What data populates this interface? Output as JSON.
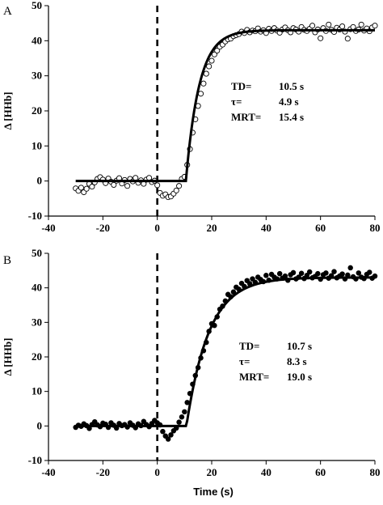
{
  "panels": [
    {
      "letter": "A",
      "marker": "open",
      "annotations": [
        {
          "label": "TD=",
          "value": "10.5 s"
        },
        {
          "label": "τ=",
          "value": "4.9  s"
        },
        {
          "label": "MRT=",
          "value": "15.4  s"
        }
      ]
    },
    {
      "letter": "B",
      "marker": "filled",
      "annotations": [
        {
          "label": "TD=",
          "value": "10.7 s"
        },
        {
          "label": "τ=",
          "value": "8.3  s"
        },
        {
          "label": "MRT=",
          "value": "19.0  s"
        }
      ]
    }
  ],
  "chart_data": [
    {
      "type": "scatter",
      "title": "",
      "xlabel": "",
      "ylabel": "Δ [HHb]",
      "xlim": [
        -40,
        80
      ],
      "ylim": [
        -10,
        50
      ],
      "xticks": [
        -40,
        -20,
        0,
        20,
        40,
        60,
        80
      ],
      "yticks": [
        -10,
        0,
        10,
        20,
        30,
        40,
        50
      ],
      "grid": false,
      "vertical_line_x": 0,
      "series": [
        {
          "marker": "open-circle",
          "x": [
            -30,
            -29,
            -28,
            -27,
            -26,
            -25,
            -24,
            -23,
            -22,
            -21,
            -20,
            -19,
            -18,
            -17,
            -16,
            -15,
            -14,
            -13,
            -12,
            -11,
            -10,
            -9,
            -8,
            -7,
            -6,
            -5,
            -4,
            -3,
            -2,
            -1,
            0,
            1,
            2,
            3,
            4,
            5,
            6,
            7,
            8,
            9,
            10,
            11,
            12,
            13,
            14,
            15,
            16,
            17,
            18,
            19,
            20,
            21,
            22,
            23,
            24,
            25,
            26,
            27,
            28,
            29,
            30,
            31,
            32,
            33,
            34,
            35,
            36,
            37,
            38,
            39,
            40,
            41,
            42,
            43,
            44,
            45,
            46,
            47,
            48,
            49,
            50,
            51,
            52,
            53,
            54,
            55,
            56,
            57,
            58,
            59,
            60,
            61,
            62,
            63,
            64,
            65,
            66,
            67,
            68,
            69,
            70,
            71,
            72,
            73,
            74,
            75,
            76,
            77,
            78,
            79,
            80
          ],
          "y": [
            -2.1,
            -2.8,
            -1.9,
            -3.2,
            -2.2,
            -0.8,
            -1.6,
            -0.4,
            0.6,
            1.1,
            0.4,
            -0.6,
            0.7,
            -0.2,
            -1.1,
            0.1,
            0.8,
            -0.7,
            0.3,
            -1.4,
            0.6,
            -0.1,
            0.9,
            -0.5,
            0.2,
            -0.8,
            0.4,
            0.9,
            -0.3,
            0.1,
            -1.2,
            -3.4,
            -4.2,
            -3.8,
            -4.6,
            -4.4,
            -3.6,
            -2.7,
            -1.4,
            0.6,
            1.2,
            4.6,
            9.1,
            13.8,
            17.6,
            21.4,
            24.9,
            27.8,
            30.6,
            32.7,
            34.3,
            36.1,
            37.2,
            38.3,
            38.9,
            39.8,
            40.4,
            40.6,
            41.3,
            41.6,
            41.9,
            42.6,
            42.2,
            43.1,
            42.4,
            42.9,
            42.7,
            43.5,
            42.6,
            43.0,
            42.2,
            43.4,
            42.8,
            43.6,
            42.9,
            42.3,
            43.2,
            43.8,
            43.0,
            42.4,
            43.6,
            43.2,
            42.6,
            43.9,
            43.1,
            42.8,
            43.4,
            44.3,
            42.4,
            43.2,
            40.7,
            43.6,
            42.8,
            44.6,
            43.1,
            42.5,
            43.7,
            43.2,
            44.1,
            42.6,
            40.6,
            43.3,
            43.9,
            42.8,
            43.2,
            44.6,
            42.9,
            43.5,
            42.7,
            43.8,
            44.3
          ]
        }
      ],
      "fit": {
        "td": 10.5,
        "tau": 4.9,
        "baseline": 0,
        "amplitude": 43
      }
    },
    {
      "type": "scatter",
      "title": "",
      "xlabel": "Time (s)",
      "ylabel": "Δ [HHb]",
      "xlim": [
        -40,
        80
      ],
      "ylim": [
        -10,
        50
      ],
      "xticks": [
        -40,
        -20,
        0,
        20,
        40,
        60,
        80
      ],
      "yticks": [
        -10,
        0,
        10,
        20,
        30,
        40,
        50
      ],
      "grid": false,
      "vertical_line_x": 0,
      "series": [
        {
          "marker": "filled-circle",
          "x": [
            -30,
            -29,
            -28,
            -27,
            -26,
            -25,
            -24,
            -23,
            -22,
            -21,
            -20,
            -19,
            -18,
            -17,
            -16,
            -15,
            -14,
            -13,
            -12,
            -11,
            -10,
            -9,
            -8,
            -7,
            -6,
            -5,
            -4,
            -3,
            -2,
            -1,
            0,
            1,
            2,
            3,
            4,
            5,
            6,
            7,
            8,
            9,
            10,
            11,
            12,
            13,
            14,
            15,
            16,
            17,
            18,
            19,
            20,
            21,
            22,
            23,
            24,
            25,
            26,
            27,
            28,
            29,
            30,
            31,
            32,
            33,
            34,
            35,
            36,
            37,
            38,
            39,
            40,
            41,
            42,
            43,
            44,
            45,
            46,
            47,
            48,
            49,
            50,
            51,
            52,
            53,
            54,
            55,
            56,
            57,
            58,
            59,
            60,
            61,
            62,
            63,
            64,
            65,
            66,
            67,
            68,
            69,
            70,
            71,
            72,
            73,
            74,
            75,
            76,
            77,
            78,
            79,
            80
          ],
          "y": [
            -0.4,
            0.2,
            -0.1,
            0.6,
            0.1,
            -0.7,
            0.4,
            1.2,
            0.3,
            -0.2,
            0.8,
            0.5,
            -0.4,
            0.9,
            0.2,
            -0.6,
            0.7,
            0.1,
            0.4,
            -0.3,
            0.9,
            0.2,
            -0.5,
            0.6,
            0.1,
            1.3,
            0.4,
            -0.2,
            0.7,
            1.6,
            0.9,
            0.3,
            -1.6,
            -2.9,
            -3.8,
            -2.6,
            -1.4,
            -0.6,
            1.1,
            2.6,
            4.1,
            6.8,
            9.4,
            12.1,
            14.6,
            16.9,
            19.7,
            21.8,
            24.2,
            27.4,
            29.6,
            29.1,
            31.6,
            33.8,
            34.7,
            36.2,
            38.1,
            37.4,
            38.8,
            40.2,
            39.6,
            41.3,
            40.4,
            42.1,
            41.2,
            42.6,
            41.6,
            43.1,
            42.4,
            41.8,
            43.6,
            42.2,
            43.9,
            43.1,
            42.6,
            44.1,
            42.8,
            43.4,
            42.2,
            43.8,
            44.4,
            42.6,
            43.1,
            44.2,
            42.7,
            43.6,
            44.6,
            42.9,
            43.3,
            44.1,
            42.5,
            43.8,
            44.3,
            42.8,
            43.5,
            44.7,
            42.9,
            43.4,
            44.0,
            42.6,
            43.7,
            45.8,
            43.2,
            42.6,
            44.3,
            43.1,
            42.7,
            43.9,
            44.5,
            42.8,
            43.4
          ]
        }
      ],
      "fit": {
        "td": 10.7,
        "tau": 8.3,
        "baseline": 0,
        "amplitude": 43
      }
    }
  ]
}
